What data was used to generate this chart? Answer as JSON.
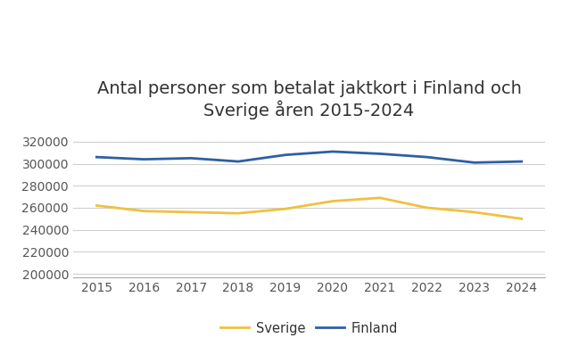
{
  "title": "Antal personer som betalat jaktkort i Finland och\nSverige åren 2015-2024",
  "years": [
    2015,
    2016,
    2017,
    2018,
    2019,
    2020,
    2021,
    2022,
    2023,
    2024
  ],
  "finland": [
    306000,
    304000,
    305000,
    302000,
    308000,
    311000,
    309000,
    306000,
    301000,
    302000
  ],
  "sverige": [
    262000,
    257000,
    256000,
    255000,
    259000,
    266000,
    269000,
    260000,
    256000,
    250000
  ],
  "finland_color": "#2e5fa3",
  "sverige_color": "#f0c040",
  "background_color": "#ffffff",
  "ylim": [
    197000,
    332000
  ],
  "yticks": [
    200000,
    220000,
    240000,
    260000,
    280000,
    300000,
    320000
  ],
  "title_fontsize": 14,
  "tick_fontsize": 10,
  "legend_fontsize": 10.5,
  "linewidth": 2.0
}
